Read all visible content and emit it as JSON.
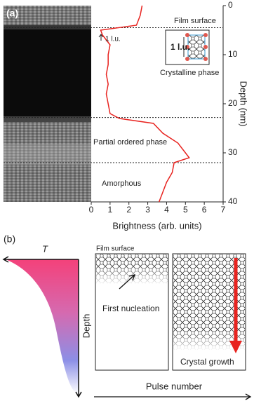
{
  "chart_data": {
    "type": "line",
    "panel_label": "(a)",
    "xlabel": "Brightness (arb. units)",
    "ylabel": "Depth (nm)",
    "xlim": [
      0,
      7
    ],
    "ylim": [
      40,
      0
    ],
    "xticks": [
      0,
      1,
      2,
      3,
      4,
      5,
      6,
      7
    ],
    "yticks": [
      0,
      10,
      20,
      30,
      40
    ],
    "y_axis_side": "right",
    "series": [
      {
        "color": "#e8231f",
        "x": [
          2.7,
          2.6,
          2.4,
          0.5,
          0.6,
          1.0,
          0.9,
          0.9,
          0.8,
          0.9,
          0.8,
          0.9,
          1.0,
          1.5,
          3.3,
          3.8,
          4.6,
          5.0,
          5.2,
          4.4,
          4.3,
          4.0,
          3.8,
          3.6
        ],
        "y": [
          0,
          2,
          4,
          5,
          6,
          8,
          10,
          12,
          14,
          16,
          18,
          20,
          22,
          23,
          24,
          26,
          28,
          30,
          31,
          32,
          34,
          36,
          38,
          40
        ]
      }
    ],
    "boundaries": [
      4.5,
      22.8,
      32
    ],
    "annotations": [
      "Film surface",
      "1 l.u.",
      "Crystalline phase",
      "Partial ordered phase",
      "Amorphous"
    ],
    "inset_label": "1 l.u."
  },
  "panel_b": {
    "label": "(b)",
    "temperature": "T",
    "depth": "Depth",
    "film_surface": "Film surface",
    "first_nucleation": "First nucleation",
    "crystal_growth": "Crystal growth",
    "pulse_number": "Pulse number"
  }
}
